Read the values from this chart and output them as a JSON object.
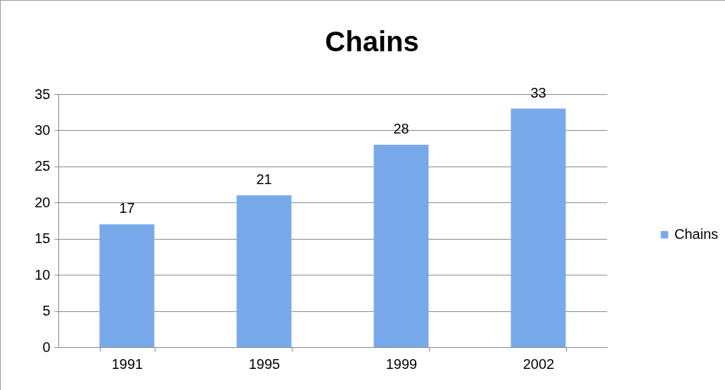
{
  "chart_data": {
    "type": "bar",
    "title": "Chains",
    "categories": [
      "1991",
      "1995",
      "1999",
      "2002"
    ],
    "series": [
      {
        "name": "Chains",
        "color": "#78a9ea",
        "values": [
          17,
          21,
          28,
          33
        ]
      }
    ],
    "ylim": [
      0,
      35
    ],
    "yticks": [
      0,
      5,
      10,
      15,
      20,
      25,
      30,
      35
    ],
    "grid": "y",
    "legend": "right",
    "data_labels": true
  }
}
